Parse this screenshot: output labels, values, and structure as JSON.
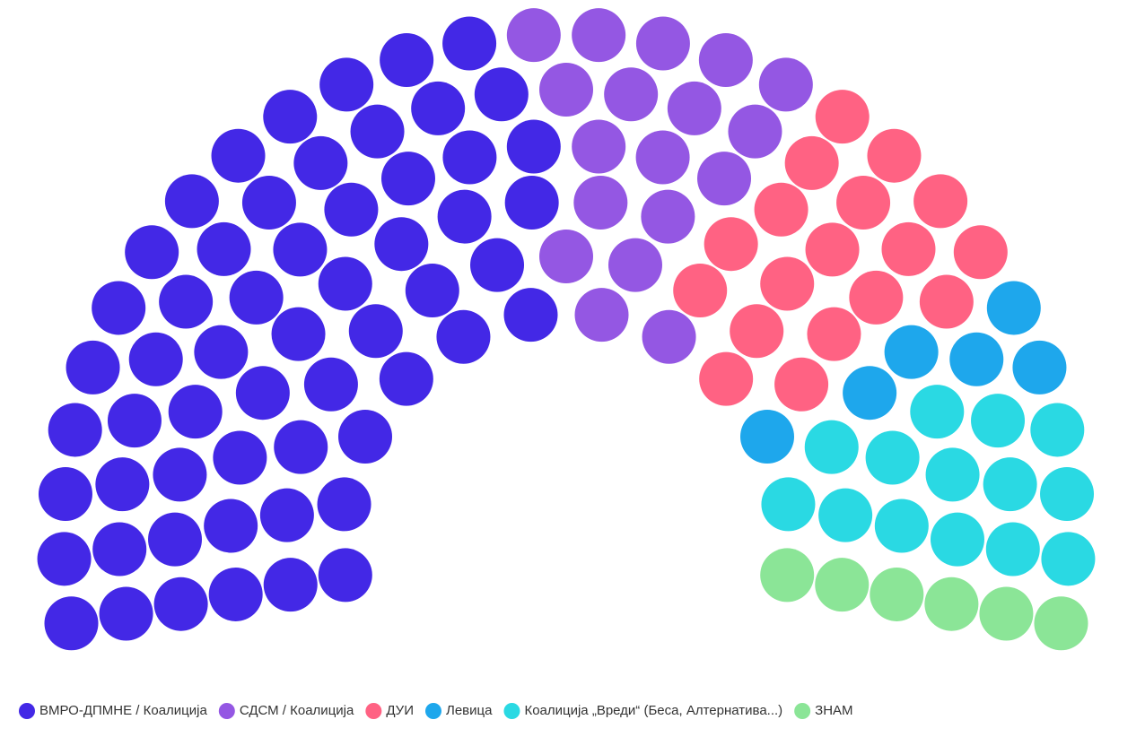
{
  "chart_data": {
    "type": "parliament",
    "legend": "bottom-left",
    "series": [
      {
        "name": "ВМРО-ДПМНЕ / Коалиција",
        "color": "#4328e6",
        "value": 58
      },
      {
        "name": "СДСМ / Коалиција",
        "color": "#9457e3",
        "value": 18
      },
      {
        "name": "ДУИ",
        "color": "#ff6283",
        "value": 18
      },
      {
        "name": "Левица",
        "color": "#1ea7ec",
        "value": 6
      },
      {
        "name": "Коалиција „Вреди“ (Беса, Алтернатива...)",
        "color": "#2ad9e3",
        "value": 14
      },
      {
        "name": "ЗНАМ",
        "color": "#8be597",
        "value": 6
      }
    ]
  }
}
